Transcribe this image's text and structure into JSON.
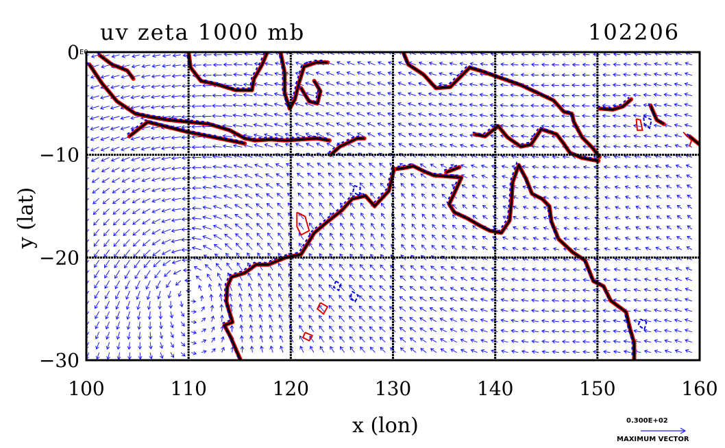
{
  "chart_data": {
    "type": "vector-field",
    "title": "uv zeta 1000 mb",
    "subtitle": "102206",
    "xlabel": "x (lon)",
    "ylabel": "y (lat)",
    "xlim": [
      100,
      160
    ],
    "ylim": [
      -30,
      0
    ],
    "xticks": [
      "100",
      "110",
      "120",
      "130",
      "140",
      "150",
      "160"
    ],
    "yticks": [
      "0",
      "−10",
      "−20",
      "−30"
    ],
    "corner_label": "E0",
    "grid": true,
    "reference_vector": {
      "magnitude_label": "0.300E+02",
      "caption": "MAXIMUM VECTOR"
    },
    "series": [
      {
        "color": "#1a1aff"
      },
      {
        "color": "#e00000"
      },
      {
        "color": "#0000e0"
      },
      {
        "color": "#000000"
      }
    ],
    "coastlines": [
      [
        [
          100.3,
          -1.2
        ],
        [
          101.5,
          -3.0
        ],
        [
          103.0,
          -4.8
        ],
        [
          104.8,
          -6.0
        ],
        [
          106.2,
          -6.3
        ],
        [
          108.0,
          -6.6
        ],
        [
          110.0,
          -6.8
        ],
        [
          112.0,
          -7.0
        ],
        [
          114.0,
          -7.6
        ],
        [
          115.5,
          -8.4
        ],
        [
          116.5,
          -8.6
        ],
        [
          118.0,
          -8.5
        ],
        [
          119.5,
          -8.6
        ],
        [
          121.0,
          -8.5
        ],
        [
          122.5,
          -8.4
        ],
        [
          123.8,
          -8.6
        ]
      ],
      [
        [
          104.2,
          -8.2
        ],
        [
          106.0,
          -6.8
        ],
        [
          108.0,
          -7.3
        ],
        [
          110.0,
          -7.8
        ],
        [
          112.0,
          -8.2
        ],
        [
          114.5,
          -8.7
        ],
        [
          115.5,
          -8.9
        ]
      ],
      [
        [
          101.3,
          -0.3
        ],
        [
          102.5,
          -1.2
        ],
        [
          104.0,
          -1.8
        ],
        [
          104.6,
          -2.6
        ]
      ],
      [
        [
          110.0,
          0
        ],
        [
          110.2,
          -1.5
        ],
        [
          111.2,
          -2.8
        ],
        [
          113.0,
          -3.2
        ],
        [
          114.6,
          -3.7
        ],
        [
          116.2,
          -3.7
        ],
        [
          116.4,
          -2.6
        ],
        [
          117.2,
          -1.2
        ],
        [
          117.7,
          0
        ]
      ],
      [
        [
          119.0,
          0
        ],
        [
          119.4,
          -2.0
        ],
        [
          119.4,
          -4.0
        ],
        [
          119.9,
          -5.5
        ],
        [
          120.4,
          -4.6
        ],
        [
          120.8,
          -3.0
        ],
        [
          121.3,
          -1.4
        ],
        [
          122.5,
          -1.0
        ],
        [
          123.6,
          -1.0
        ]
      ],
      [
        [
          121.0,
          -3.5
        ],
        [
          121.8,
          -4.8
        ],
        [
          122.6,
          -5.0
        ],
        [
          122.9,
          -3.8
        ],
        [
          122.3,
          -2.8
        ]
      ],
      [
        [
          123.9,
          -10.0
        ],
        [
          124.8,
          -9.2
        ],
        [
          126.5,
          -8.4
        ],
        [
          127.2,
          -8.4
        ]
      ],
      [
        [
          131.0,
          0
        ],
        [
          131.5,
          -1.2
        ],
        [
          133.0,
          -2.2
        ],
        [
          134.2,
          -3.5
        ],
        [
          135.6,
          -3.4
        ],
        [
          137.5,
          -1.5
        ],
        [
          138.8,
          -1.9
        ],
        [
          140.5,
          -2.5
        ],
        [
          142.5,
          -3.2
        ],
        [
          144.0,
          -3.9
        ],
        [
          145.7,
          -4.7
        ],
        [
          146.7,
          -5.8
        ],
        [
          147.5,
          -6.0
        ],
        [
          147.7,
          -6.8
        ],
        [
          148.5,
          -8.3
        ],
        [
          149.5,
          -9.3
        ],
        [
          150.2,
          -10.2
        ]
      ],
      [
        [
          138.0,
          -8.0
        ],
        [
          139.0,
          -8.2
        ],
        [
          140.3,
          -7.2
        ],
        [
          141.2,
          -8.3
        ],
        [
          142.5,
          -9.2
        ],
        [
          143.5,
          -9.0
        ],
        [
          144.5,
          -7.5
        ],
        [
          146.0,
          -8.0
        ],
        [
          146.7,
          -8.9
        ],
        [
          147.3,
          -9.8
        ],
        [
          148.5,
          -10.3
        ],
        [
          150.1,
          -10.6
        ]
      ],
      [
        [
          150.2,
          -5.5
        ],
        [
          151.5,
          -5.6
        ],
        [
          152.5,
          -5.3
        ],
        [
          153.3,
          -4.6
        ]
      ],
      [
        [
          155.2,
          -5.2
        ],
        [
          155.8,
          -6.6
        ],
        [
          156.5,
          -7.0
        ]
      ],
      [
        [
          159.0,
          -8.2
        ],
        [
          160.0,
          -9.0
        ]
      ],
      [
        [
          130.1,
          -11.4
        ],
        [
          131.0,
          -11.3
        ],
        [
          132.0,
          -11.1
        ],
        [
          133.0,
          -11.6
        ],
        [
          134.0,
          -12.0
        ],
        [
          135.3,
          -12.1
        ],
        [
          136.7,
          -12.2
        ],
        [
          136.2,
          -13.3
        ],
        [
          135.5,
          -14.8
        ],
        [
          136.0,
          -15.6
        ],
        [
          137.3,
          -16.2
        ],
        [
          138.5,
          -16.9
        ],
        [
          139.5,
          -17.4
        ],
        [
          140.6,
          -17.6
        ],
        [
          141.4,
          -16.4
        ],
        [
          141.6,
          -14.5
        ],
        [
          141.7,
          -12.7
        ],
        [
          142.3,
          -11.0
        ],
        [
          143.0,
          -12.3
        ],
        [
          143.6,
          -13.8
        ],
        [
          144.6,
          -14.3
        ],
        [
          145.3,
          -15.0
        ],
        [
          145.5,
          -16.5
        ],
        [
          146.2,
          -18.2
        ],
        [
          147.6,
          -19.5
        ],
        [
          148.8,
          -20.3
        ],
        [
          149.6,
          -22.3
        ],
        [
          150.6,
          -22.8
        ],
        [
          151.3,
          -24.2
        ],
        [
          152.8,
          -25.3
        ],
        [
          153.2,
          -27.0
        ],
        [
          153.6,
          -28.3
        ],
        [
          153.6,
          -30.0
        ]
      ],
      [
        [
          130.1,
          -11.4
        ],
        [
          129.6,
          -13.5
        ],
        [
          128.2,
          -15.0
        ],
        [
          127.3,
          -14.0
        ],
        [
          126.0,
          -14.3
        ],
        [
          125.0,
          -15.4
        ],
        [
          123.6,
          -16.5
        ],
        [
          122.3,
          -17.6
        ],
        [
          121.0,
          -19.7
        ],
        [
          119.5,
          -20.0
        ],
        [
          117.8,
          -20.7
        ],
        [
          116.6,
          -20.7
        ],
        [
          115.5,
          -21.5
        ],
        [
          114.2,
          -21.9
        ],
        [
          113.8,
          -22.8
        ],
        [
          113.7,
          -24.3
        ],
        [
          114.3,
          -26.3
        ],
        [
          113.5,
          -26.6
        ],
        [
          114.1,
          -27.7
        ],
        [
          114.7,
          -29.1
        ],
        [
          115.1,
          -30.0
        ]
      ],
      [
        [
          135.2,
          -11.7
        ],
        [
          136.5,
          -11.2
        ]
      ]
    ],
    "contours_red": [
      [
        [
          120.6,
          -15.6
        ],
        [
          121.4,
          -16.0
        ],
        [
          121.8,
          -17.4
        ],
        [
          121.0,
          -17.8
        ],
        [
          120.6,
          -17.0
        ],
        [
          120.6,
          -15.6
        ]
      ],
      [
        [
          122.9,
          -24.4
        ],
        [
          123.6,
          -24.8
        ],
        [
          123.2,
          -25.5
        ],
        [
          122.6,
          -25.0
        ],
        [
          122.9,
          -24.4
        ]
      ],
      [
        [
          121.4,
          -27.3
        ],
        [
          122.1,
          -27.6
        ],
        [
          121.8,
          -28.1
        ],
        [
          121.2,
          -27.8
        ],
        [
          121.4,
          -27.3
        ]
      ],
      [
        [
          153.8,
          -6.5
        ],
        [
          154.2,
          -6.6
        ],
        [
          154.4,
          -7.6
        ],
        [
          153.9,
          -7.6
        ],
        [
          153.8,
          -6.5
        ]
      ],
      [
        [
          158.4,
          -7.8
        ],
        [
          159.2,
          -8.6
        ],
        [
          159.0,
          -9.2
        ]
      ]
    ],
    "contours_blue": [
      [
        [
          126.2,
          -13.0
        ],
        [
          126.8,
          -13.2
        ],
        [
          126.7,
          -14.0
        ],
        [
          126.1,
          -13.6
        ],
        [
          126.2,
          -13.0
        ]
      ],
      [
        [
          126.0,
          -23.3
        ],
        [
          126.6,
          -23.7
        ],
        [
          126.3,
          -24.3
        ],
        [
          125.8,
          -24.0
        ],
        [
          126.0,
          -23.3
        ]
      ],
      [
        [
          124.4,
          -22.3
        ],
        [
          124.9,
          -22.6
        ],
        [
          124.7,
          -23.2
        ],
        [
          124.2,
          -22.9
        ],
        [
          124.4,
          -22.3
        ]
      ],
      [
        [
          154.5,
          -6.2
        ],
        [
          155.3,
          -6.6
        ],
        [
          155.1,
          -7.4
        ],
        [
          154.6,
          -7.0
        ],
        [
          154.5,
          -6.2
        ]
      ],
      [
        [
          154.2,
          -26.0
        ],
        [
          154.8,
          -26.3
        ],
        [
          154.6,
          -27.0
        ],
        [
          154.0,
          -26.6
        ],
        [
          154.2,
          -26.0
        ]
      ]
    ]
  }
}
